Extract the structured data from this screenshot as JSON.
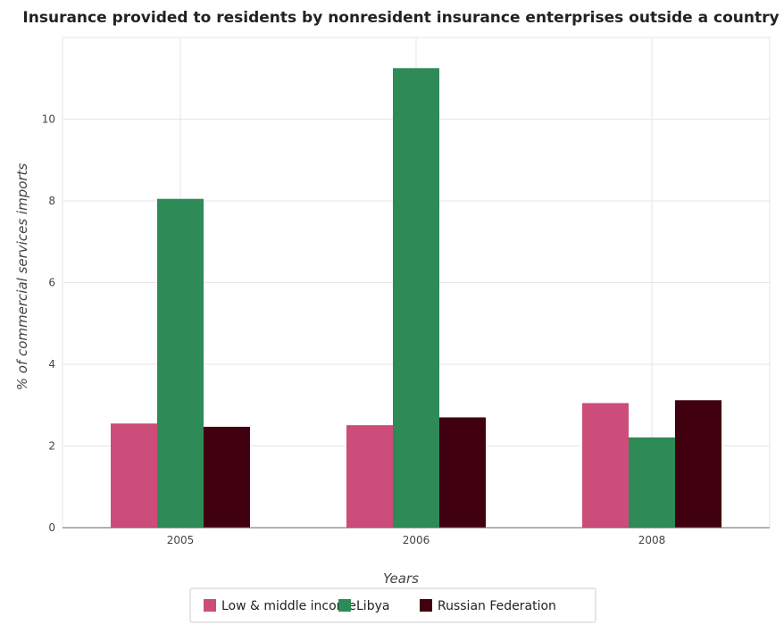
{
  "chart_data": {
    "type": "bar",
    "title": "Insurance provided to residents by nonresident insurance enterprises outside a country",
    "xlabel": "Years",
    "ylabel": "% of commercial services imports",
    "categories": [
      "2005",
      "2006",
      "2008"
    ],
    "ylim": [
      0,
      12
    ],
    "yticks": [
      0,
      2,
      4,
      6,
      8,
      10
    ],
    "grid": true,
    "legend_position": "bottom-center",
    "series": [
      {
        "name": "Low & middle income",
        "color": "#cc4c7a",
        "values": [
          2.55,
          2.51,
          3.05
        ]
      },
      {
        "name": "Libya",
        "color": "#2e8b57",
        "values": [
          8.05,
          11.25,
          2.21
        ]
      },
      {
        "name": "Russian Federation",
        "color": "#400010",
        "values": [
          2.47,
          2.7,
          3.12
        ]
      }
    ]
  }
}
